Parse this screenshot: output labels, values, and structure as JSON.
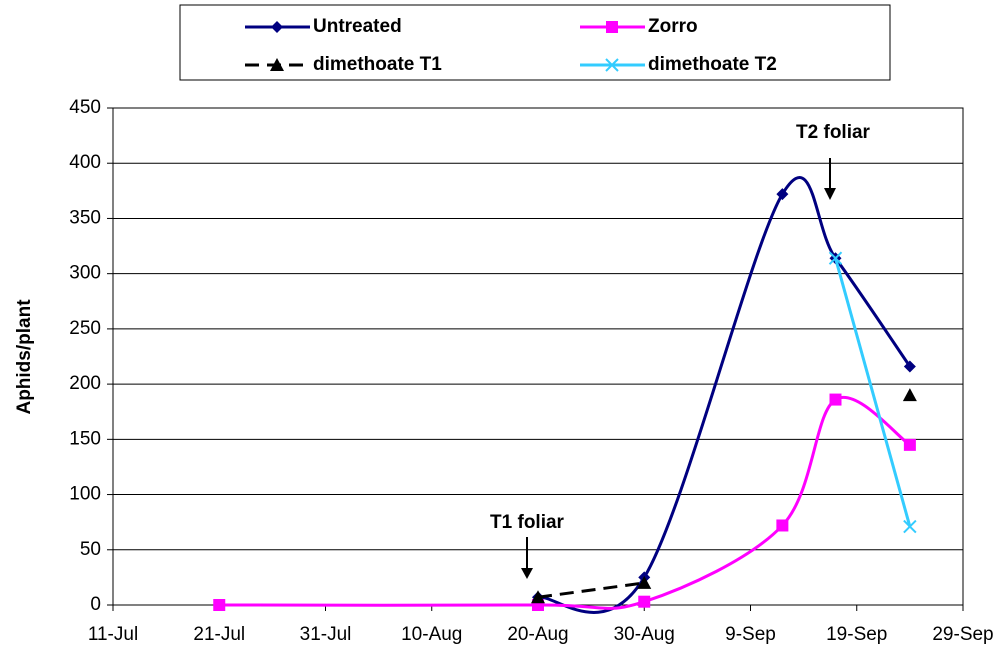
{
  "chart_data": {
    "type": "line",
    "y_label": "Aphids/plant",
    "annotations": [
      "T1 foliar",
      "T2 foliar"
    ],
    "xlim": [
      "11-Jul",
      "29-Sep"
    ],
    "xticks": [
      "11-Jul",
      "21-Jul",
      "31-Jul",
      "10-Aug",
      "20-Aug",
      "30-Aug",
      "9-Sep",
      "19-Sep",
      "29-Sep"
    ],
    "ylim": [
      0,
      450
    ],
    "yticks": [
      0,
      50,
      100,
      150,
      200,
      250,
      300,
      350,
      400,
      450
    ],
    "grid": true,
    "series": [
      {
        "name": "Untreated",
        "color": "#000080",
        "marker": "diamond",
        "dash": false,
        "x": [
          "20-Aug",
          "30-Aug",
          "12-Sep",
          "17-Sep",
          "24-Sep"
        ],
        "values": [
          7,
          25,
          372,
          314,
          216
        ]
      },
      {
        "name": "Zorro",
        "color": "#ff00ff",
        "marker": "square",
        "dash": false,
        "x": [
          "21-Jul",
          "20-Aug",
          "30-Aug",
          "12-Sep",
          "17-Sep",
          "24-Sep"
        ],
        "values": [
          0,
          0,
          3,
          72,
          186,
          145
        ]
      },
      {
        "name": "dimethoate T1",
        "color": "#000000",
        "marker": "triangle",
        "dash": true,
        "x": [
          "20-Aug",
          "30-Aug",
          "17-Sep",
          "24-Sep"
        ],
        "values": [
          7,
          20,
          null,
          190
        ]
      },
      {
        "name": "dimethoate T2",
        "color": "#33ccff",
        "marker": "x",
        "dash": false,
        "x": [
          "17-Sep",
          "24-Sep"
        ],
        "values": [
          314,
          71
        ]
      }
    ]
  }
}
